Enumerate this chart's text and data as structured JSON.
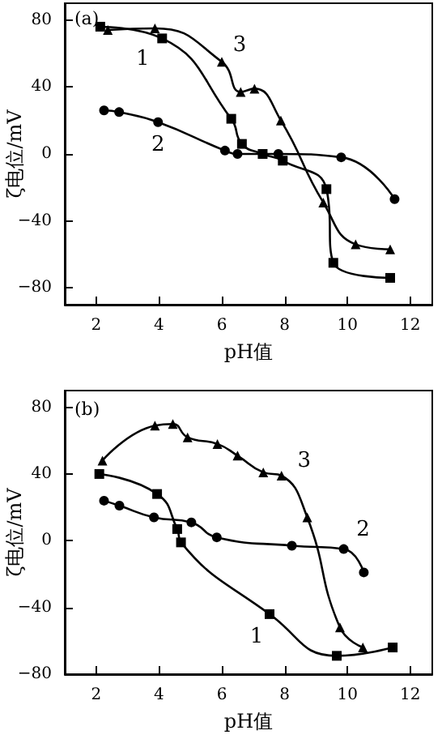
{
  "chart_data": [
    {
      "type": "line",
      "title": "(a)",
      "xlabel": "pH值",
      "ylabel": "ζ电位/mV",
      "xlim": [
        1,
        12.7
      ],
      "ylim": [
        -90,
        90
      ],
      "xticks": [
        2,
        4,
        6,
        8,
        10,
        12
      ],
      "yticks": [
        -80,
        -40,
        0,
        40,
        80
      ],
      "grid": false,
      "line_style": "solid",
      "series": [
        {
          "name": "1",
          "color": "#000000",
          "marker": "square",
          "x": [
            2.13,
            4.1,
            6.3,
            6.64,
            7.3,
            7.94,
            9.33,
            9.55,
            11.36
          ],
          "values": [
            76,
            69,
            21,
            6,
            0,
            -4,
            -21,
            -65,
            -74
          ]
        },
        {
          "name": "2",
          "color": "#000000",
          "marker": "circle",
          "x": [
            2.25,
            2.73,
            3.97,
            6.1,
            6.5,
            7.8,
            9.8,
            11.5
          ],
          "values": [
            26,
            25,
            19,
            2,
            0,
            0,
            -2,
            -27
          ]
        },
        {
          "name": "3",
          "color": "#000000",
          "marker": "triangle",
          "x": [
            2.37,
            3.87,
            6.0,
            6.6,
            7.04,
            7.88,
            9.23,
            10.26,
            11.36
          ],
          "values": [
            74,
            75,
            55,
            37,
            39,
            20,
            -29,
            -54,
            -57
          ]
        }
      ]
    },
    {
      "type": "line",
      "title": "(b)",
      "xlabel": "pH值",
      "ylabel": "ζ电位/mV",
      "xlim": [
        1,
        12.7
      ],
      "ylim": [
        -80,
        90
      ],
      "xticks": [
        2,
        4,
        6,
        8,
        10,
        12
      ],
      "yticks": [
        -80,
        -40,
        0,
        40,
        80
      ],
      "grid": false,
      "line_style": "solid",
      "series": [
        {
          "name": "1",
          "color": "#000000",
          "marker": "square",
          "x": [
            2.1,
            3.94,
            4.58,
            4.7,
            7.52,
            9.66,
            11.44
          ],
          "values": [
            40,
            28,
            7,
            -1,
            -44,
            -69,
            -64
          ]
        },
        {
          "name": "2",
          "color": "#000000",
          "marker": "circle",
          "x": [
            2.25,
            2.74,
            3.84,
            5.03,
            5.84,
            8.23,
            9.88,
            10.52
          ],
          "values": [
            24,
            21,
            14,
            11,
            2,
            -3,
            -5,
            -19
          ]
        },
        {
          "name": "3",
          "color": "#000000",
          "marker": "triangle",
          "x": [
            2.2,
            3.87,
            4.44,
            4.91,
            5.86,
            6.5,
            7.32,
            7.9,
            8.72,
            9.76,
            10.49
          ],
          "values": [
            48,
            69,
            70,
            62,
            58,
            51,
            41,
            39,
            14,
            -52,
            -64
          ]
        }
      ]
    }
  ]
}
